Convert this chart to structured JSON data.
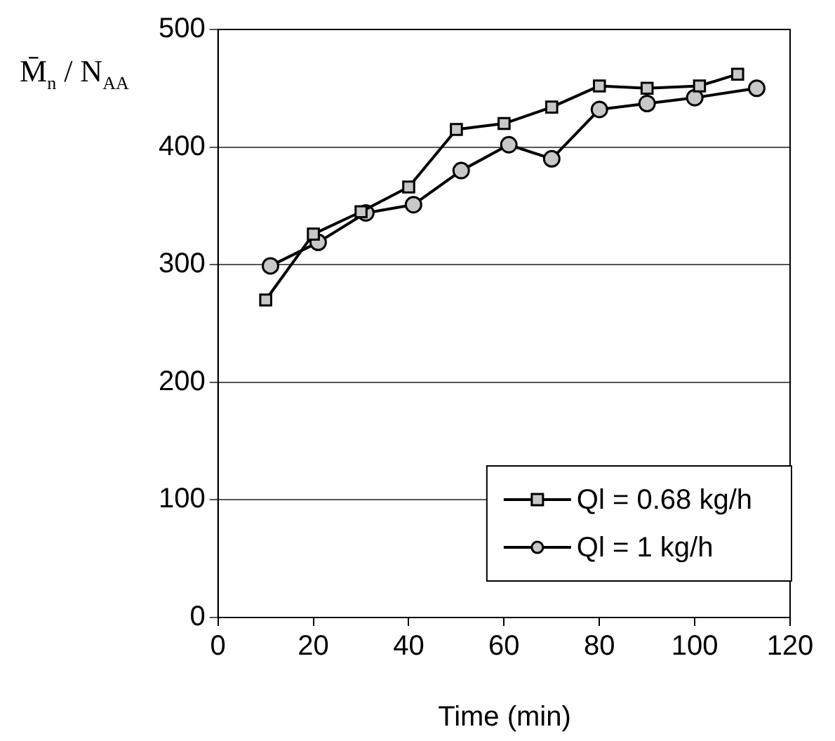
{
  "chart_data": {
    "type": "line",
    "xlabel": "Time (min)",
    "ylabel": "M̄$_{n}$ / N$_{AA}$",
    "xlim": [
      0,
      120
    ],
    "xticks": [
      0,
      20,
      40,
      60,
      80,
      100,
      120
    ],
    "ylim": [
      0,
      500
    ],
    "yticks": [
      0,
      100,
      200,
      300,
      400,
      500
    ],
    "grid": "y",
    "legend": "bottom right",
    "series": [
      {
        "name": "Ql = 0.68 kg/h",
        "color": "#000000",
        "marker": "square",
        "x": [
          10,
          20,
          30,
          40,
          50,
          60,
          70,
          80,
          90,
          101,
          109
        ],
        "values": [
          270,
          326,
          345,
          366,
          415,
          420,
          434,
          452,
          450,
          452,
          462
        ]
      },
      {
        "name": "Ql = 1 kg/h",
        "color": "#000000",
        "marker": "circle",
        "x": [
          11,
          21,
          31,
          41,
          51,
          61,
          70,
          80,
          90,
          100,
          113
        ],
        "values": [
          299,
          319,
          344,
          351,
          380,
          402,
          390,
          432,
          437,
          442,
          450
        ]
      }
    ]
  }
}
